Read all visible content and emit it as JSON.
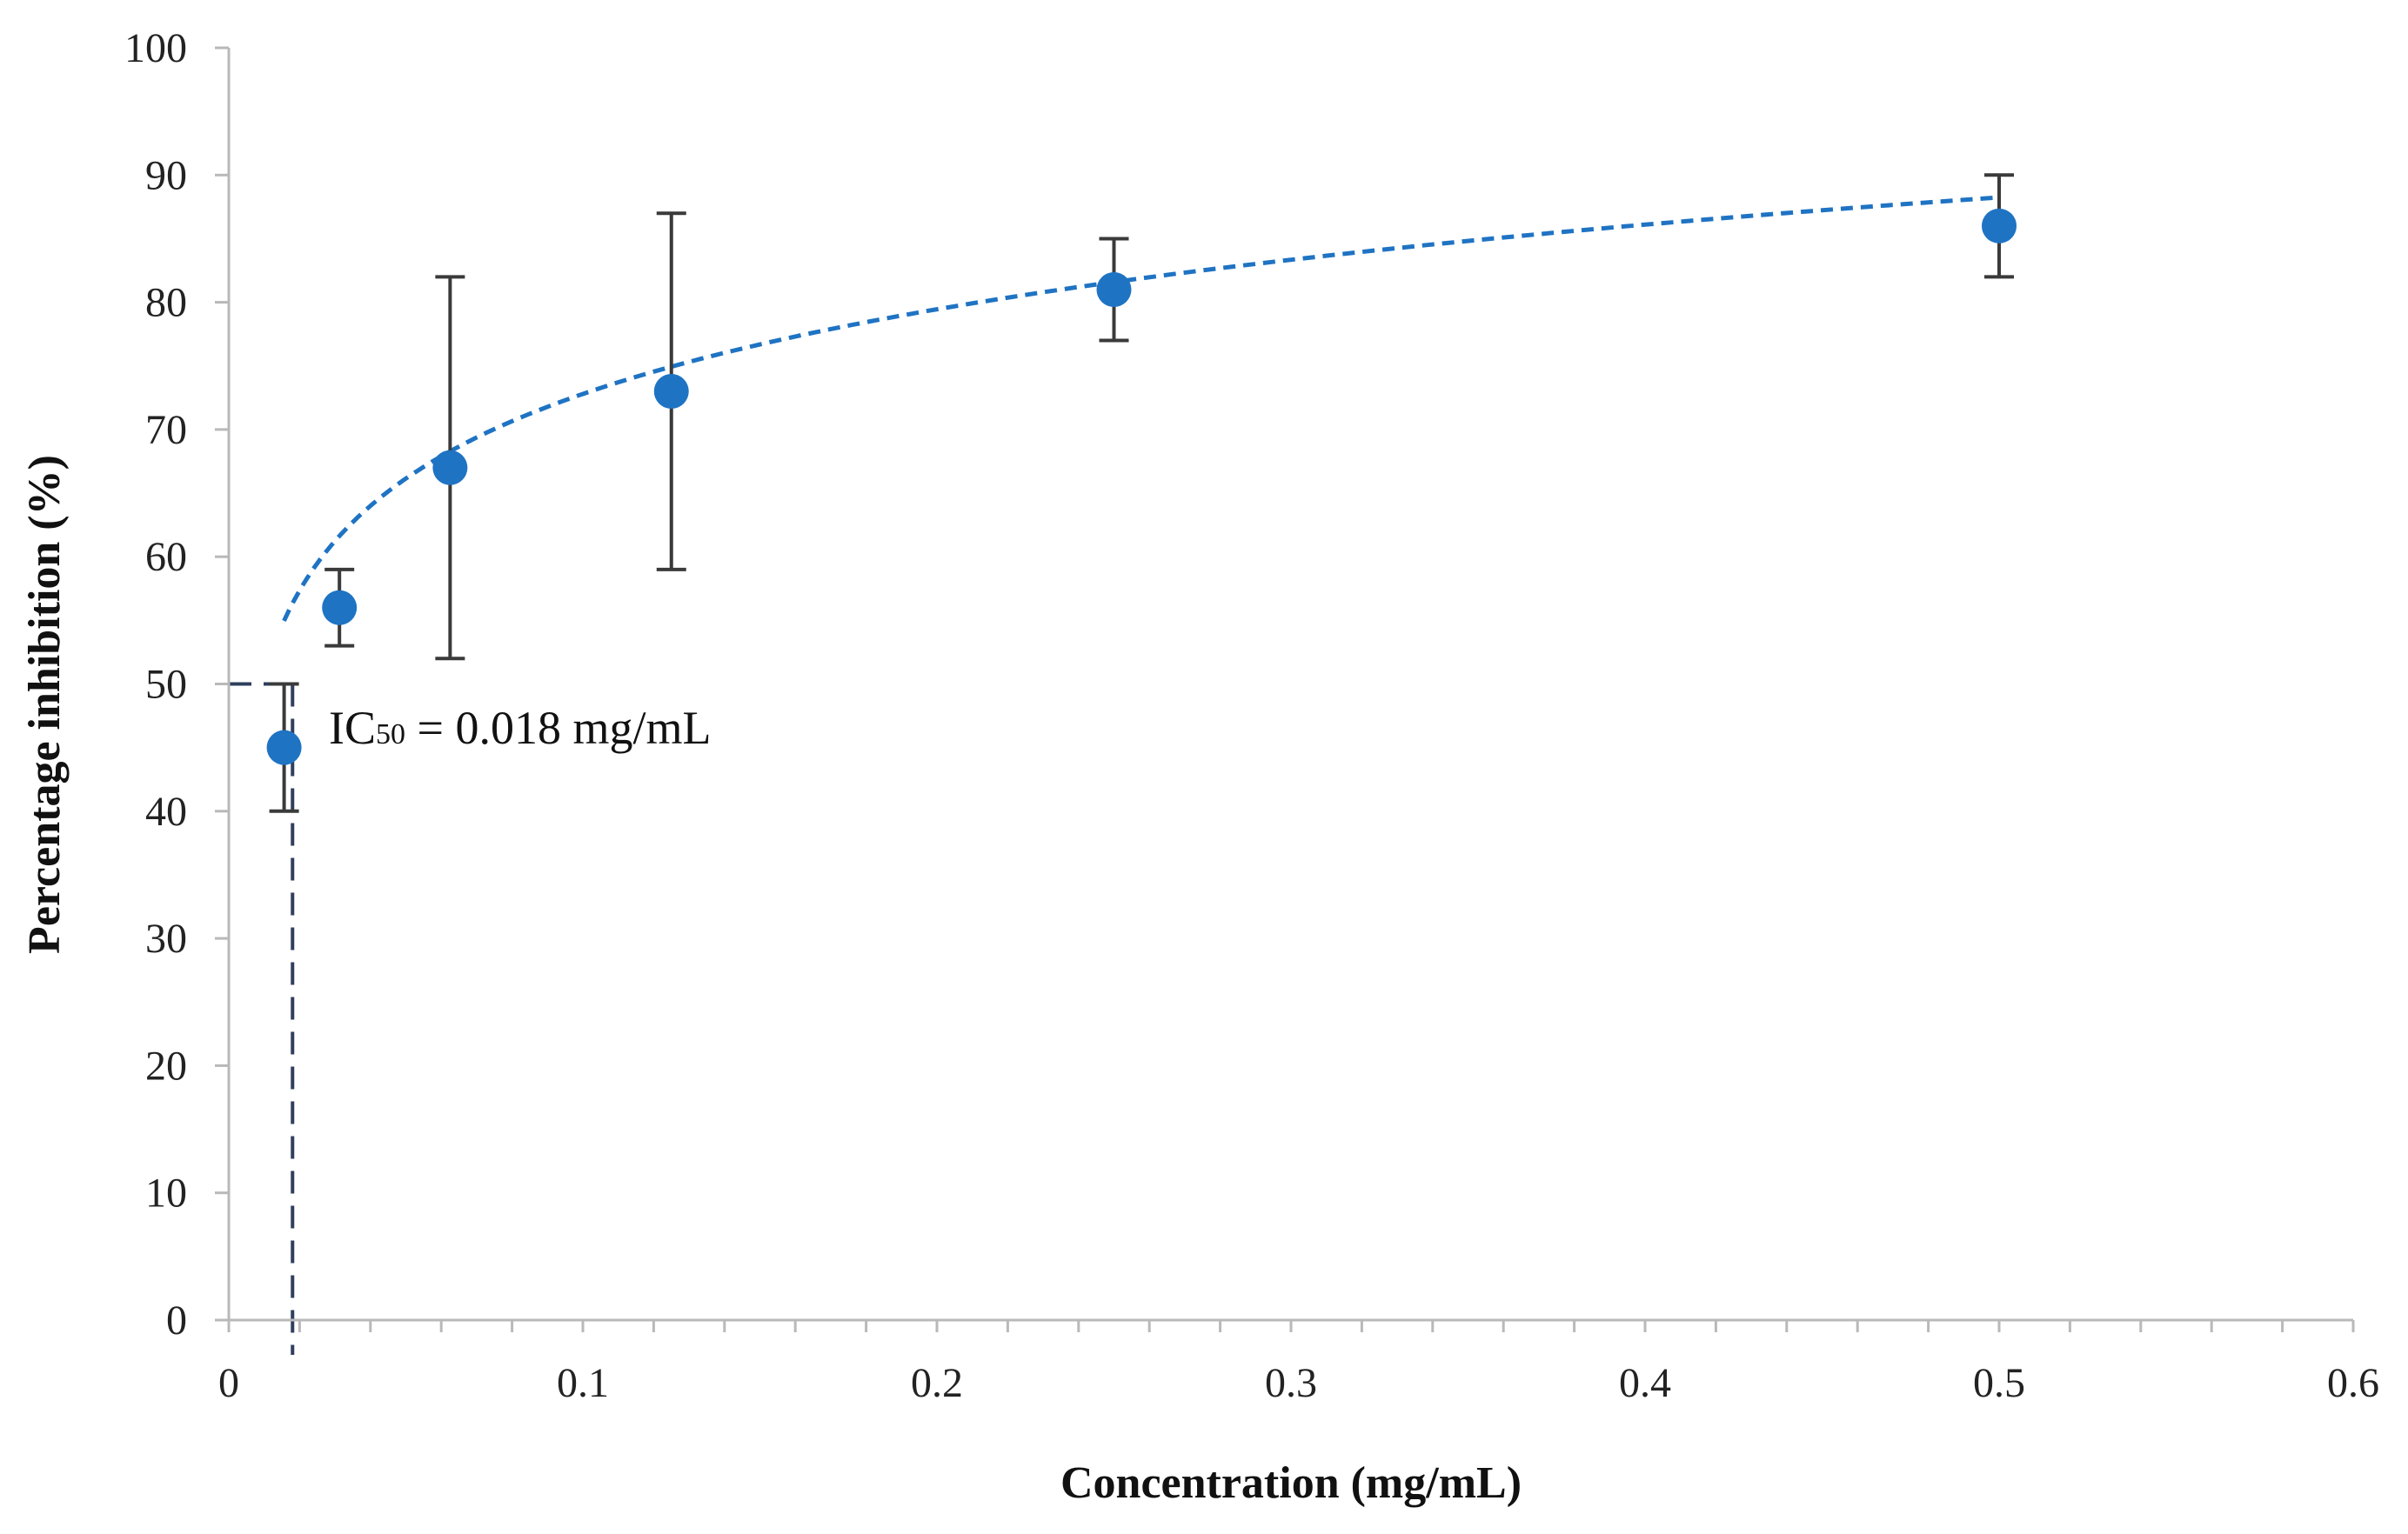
{
  "chart_data": {
    "type": "scatter",
    "title": "",
    "xlabel": "Concentration (mg/mL)",
    "ylabel": "Percentage inhibition (%)",
    "xlim": [
      0,
      0.6
    ],
    "ylim": [
      0,
      100
    ],
    "x_ticks": [
      0,
      0.1,
      0.2,
      0.3,
      0.4,
      0.5,
      0.6
    ],
    "x_tick_labels": [
      "0",
      "0.1",
      "0.2",
      "0.3",
      "0.4",
      "0.5",
      "0.6"
    ],
    "x_minor_step": 0.02,
    "y_ticks": [
      0,
      10,
      20,
      30,
      40,
      50,
      60,
      70,
      80,
      90,
      100
    ],
    "y_tick_labels": [
      "0",
      "10",
      "20",
      "30",
      "40",
      "50",
      "60",
      "70",
      "80",
      "90",
      "100"
    ],
    "grid": false,
    "legend": "none",
    "series": [
      {
        "name": "Percentage inhibition",
        "color": "#1f73c3",
        "x": [
          0.015625,
          0.03125,
          0.0625,
          0.125,
          0.25,
          0.5
        ],
        "y": [
          45,
          56,
          67,
          73,
          81,
          86
        ],
        "error_low": [
          40,
          53,
          52,
          59,
          77,
          82
        ],
        "error_high": [
          50,
          59,
          82,
          87,
          85,
          90
        ]
      }
    ],
    "trendline": {
      "type": "logarithmic",
      "style": "dashed",
      "color": "#1f73c3",
      "slope": 9.6,
      "intercept": 94.9,
      "x_start": 0.0156,
      "x_end": 0.5
    },
    "ic50_guide": {
      "x": 0.018,
      "y": 50,
      "color": "#2f3f5c",
      "style": "dashed"
    },
    "annotation": {
      "prefix": "IC",
      "subscript": "50",
      "suffix": " = 0.018 mg/mL"
    }
  }
}
